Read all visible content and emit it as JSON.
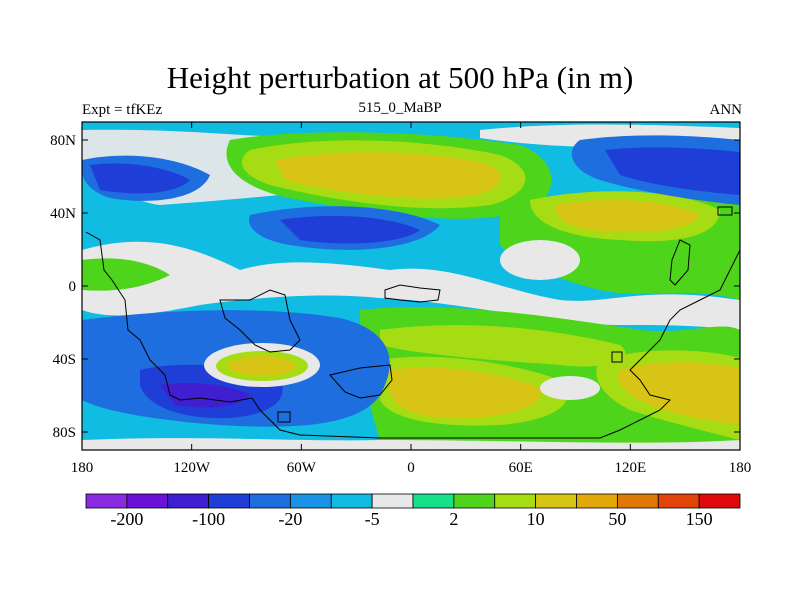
{
  "title": "Height perturbation at 500 hPa (in m)",
  "left_string": "Expt = tfKEz",
  "center_string": "515_0_MaBP",
  "right_string": "ANN",
  "x_ticks": [
    "180",
    "120W",
    "60W",
    "0",
    "60E",
    "120E",
    "180"
  ],
  "y_ticks": [
    "80N",
    "40N",
    "0",
    "40S",
    "80S"
  ],
  "colorbar": {
    "colors": [
      "#8a2be2",
      "#6a12d6",
      "#3f1fd0",
      "#1f3ed8",
      "#1e6ee0",
      "#1a93e6",
      "#10bce2",
      "#e8e8e8",
      "#18e08a",
      "#4ed41a",
      "#a6dc14",
      "#d8c414",
      "#e2a80a",
      "#e07808",
      "#e04406",
      "#e00a0a"
    ],
    "labels": [
      "-200",
      "-100",
      "-20",
      "-5",
      "2",
      "10",
      "50",
      "150"
    ]
  }
}
